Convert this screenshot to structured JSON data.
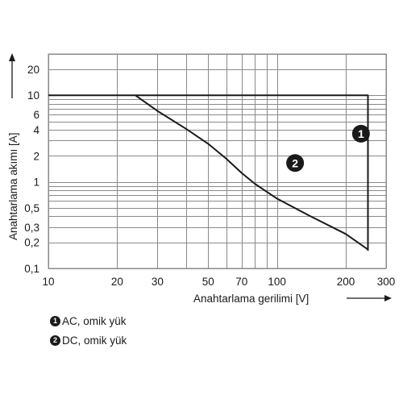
{
  "chart_data": {
    "type": "line",
    "title": "",
    "xlabel": "Anahtarlama gerilimi [V]",
    "ylabel": "Anahtarlama akımı [A]",
    "xscale": "log",
    "yscale": "log",
    "xlim": [
      10,
      300
    ],
    "ylim": [
      0.1,
      30
    ],
    "grid": true,
    "x_ticks": [
      {
        "value": 10,
        "label": "10"
      },
      {
        "value": 20,
        "label": "20"
      },
      {
        "value": 30,
        "label": "30"
      },
      {
        "value": 50,
        "label": "50"
      },
      {
        "value": 70,
        "label": "70"
      },
      {
        "value": 100,
        "label": "100"
      },
      {
        "value": 200,
        "label": "200"
      },
      {
        "value": 300,
        "label": "300"
      }
    ],
    "y_ticks": [
      {
        "value": 0.1,
        "label": "0,1"
      },
      {
        "value": 0.2,
        "label": "0,2"
      },
      {
        "value": 0.3,
        "label": "0,3"
      },
      {
        "value": 0.5,
        "label": "0,5"
      },
      {
        "value": 1,
        "label": "1"
      },
      {
        "value": 2,
        "label": "2"
      },
      {
        "value": 4,
        "label": "4"
      },
      {
        "value": 6,
        "label": "6"
      },
      {
        "value": 10,
        "label": "10"
      },
      {
        "value": 20,
        "label": "20"
      }
    ],
    "x_grid": [
      10,
      20,
      30,
      40,
      50,
      60,
      70,
      80,
      90,
      100,
      200,
      300
    ],
    "y_grid": [
      0.1,
      0.2,
      0.3,
      0.4,
      0.5,
      0.6,
      0.7,
      0.8,
      0.9,
      1,
      2,
      3,
      4,
      5,
      6,
      7,
      8,
      9,
      10,
      20,
      30
    ],
    "series": [
      {
        "marker": "1",
        "legend_text": "AC, omik yük",
        "color": "#1a1a1a",
        "points": [
          [
            10,
            10
          ],
          [
            250,
            10
          ],
          [
            250,
            0.16
          ]
        ],
        "marker_pos": [
          233,
          3.6
        ]
      },
      {
        "marker": "2",
        "legend_text": "DC, omik yük",
        "color": "#1a1a1a",
        "points": [
          [
            24,
            10
          ],
          [
            30,
            6.6
          ],
          [
            40,
            4.1
          ],
          [
            50,
            2.75
          ],
          [
            60,
            1.85
          ],
          [
            70,
            1.27
          ],
          [
            80,
            0.95
          ],
          [
            100,
            0.64
          ],
          [
            140,
            0.4
          ],
          [
            200,
            0.25
          ],
          [
            250,
            0.165
          ]
        ],
        "marker_pos": [
          120,
          1.65
        ]
      }
    ]
  }
}
